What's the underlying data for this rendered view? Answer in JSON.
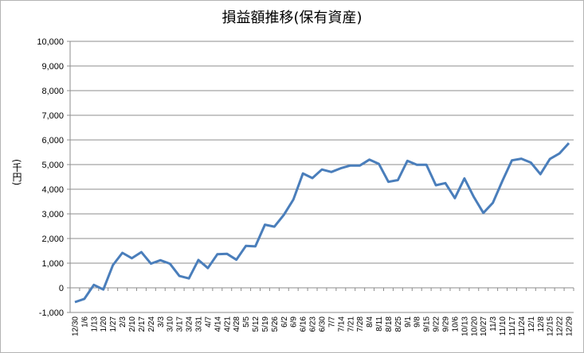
{
  "chart_data": {
    "type": "line",
    "title": "損益額推移(保有資産)",
    "ylabel": "(千円)",
    "xlabel": "",
    "ylim": [
      -1000,
      10000
    ],
    "yticks": [
      -1000,
      0,
      1000,
      2000,
      3000,
      4000,
      5000,
      6000,
      7000,
      8000,
      9000,
      10000
    ],
    "ytick_labels": [
      "-1,000",
      "0",
      "1,000",
      "2,000",
      "3,000",
      "4,000",
      "5,000",
      "6,000",
      "7,000",
      "8,000",
      "9,000",
      "10,000"
    ],
    "grid": true,
    "legend": "none",
    "line_color": "#4a7ebb",
    "categories": [
      "12/30",
      "1/6",
      "1/13",
      "1/20",
      "1/27",
      "2/3",
      "2/10",
      "2/17",
      "2/24",
      "3/3",
      "3/10",
      "3/17",
      "3/24",
      "3/31",
      "4/7",
      "4/14",
      "4/21",
      "4/28",
      "5/5",
      "5/12",
      "5/19",
      "5/26",
      "6/2",
      "6/9",
      "6/16",
      "6/23",
      "6/30",
      "7/7",
      "7/14",
      "7/21",
      "7/28",
      "8/4",
      "8/11",
      "8/18",
      "8/25",
      "9/1",
      "9/8",
      "9/15",
      "9/22",
      "9/29",
      "10/6",
      "10/13",
      "10/20",
      "10/27",
      "11/3",
      "11/10",
      "11/17",
      "11/24",
      "12/1",
      "12/8",
      "12/15",
      "12/22",
      "12/29"
    ],
    "values": [
      -580,
      -450,
      120,
      -70,
      920,
      1420,
      1200,
      1450,
      980,
      1120,
      980,
      480,
      380,
      1130,
      800,
      1360,
      1380,
      1140,
      1700,
      1680,
      2560,
      2480,
      2960,
      3580,
      4640,
      4450,
      4800,
      4700,
      4850,
      4960,
      4960,
      5200,
      5030,
      4300,
      4370,
      5150,
      4990,
      4990,
      4160,
      4250,
      3640,
      4440,
      3680,
      3040,
      3450,
      4340,
      5170,
      5240,
      5080,
      4610,
      5230,
      5450,
      5870
    ]
  }
}
